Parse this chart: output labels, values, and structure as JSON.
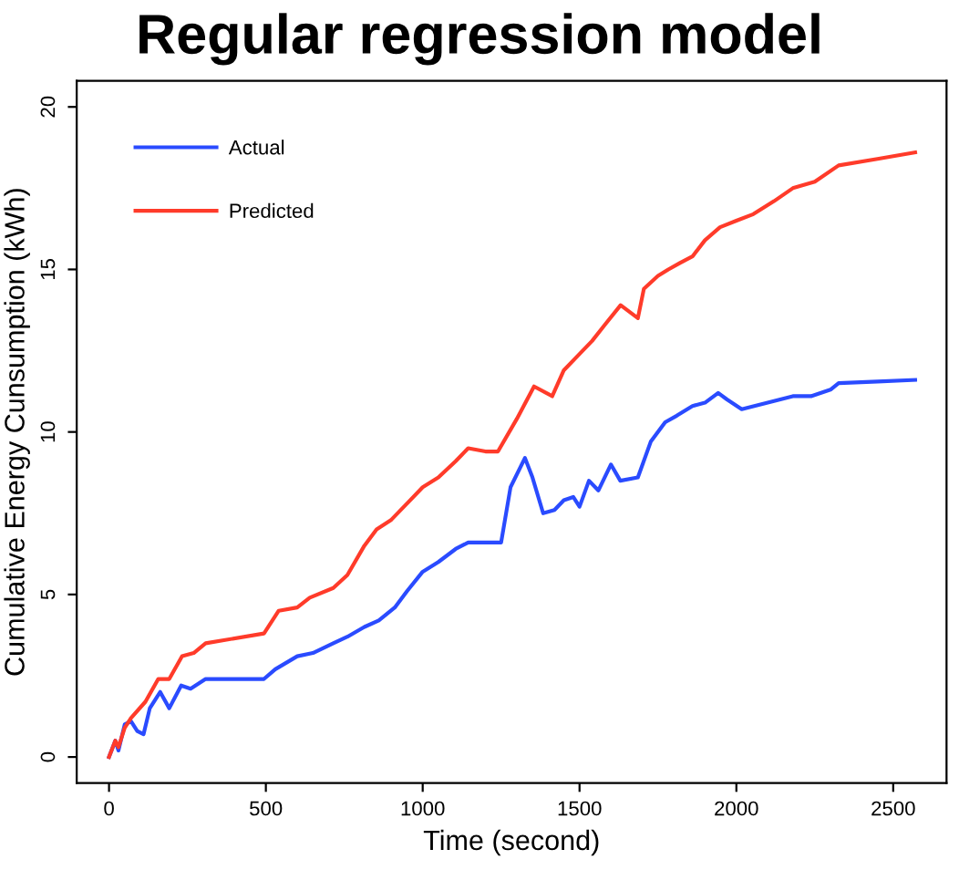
{
  "chart_data": {
    "type": "line",
    "title": "Regular regression model",
    "xlabel": "Time (second)",
    "ylabel": "Cumulative Energy Cunsumption (kWh)",
    "xlim": [
      -103,
      2670
    ],
    "ylim": [
      -0.8,
      20.8
    ],
    "xticks": [
      0,
      500,
      1000,
      1500,
      2000,
      2500
    ],
    "yticks": [
      0,
      5,
      10,
      15,
      20
    ],
    "grid": false,
    "legend": "top left",
    "line_style": "solid",
    "marker": "none",
    "series": [
      {
        "name": "Actual",
        "color": "#2a4bff",
        "x": [
          0,
          20,
          30,
          50,
          70,
          90,
          110,
          130,
          163,
          192,
          230,
          260,
          308,
          494,
          530,
          600,
          650,
          715,
          760,
          814,
          860,
          911,
          950,
          1000,
          1050,
          1105,
          1145,
          1200,
          1250,
          1280,
          1326,
          1350,
          1384,
          1420,
          1450,
          1480,
          1500,
          1530,
          1560,
          1600,
          1630,
          1686,
          1727,
          1773,
          1810,
          1860,
          1900,
          1942,
          1970,
          2017,
          2100,
          2180,
          2238,
          2300,
          2326,
          2450,
          2570
        ],
        "values": [
          0,
          0.5,
          0.2,
          1.0,
          1.1,
          0.8,
          0.7,
          1.5,
          2.0,
          1.5,
          2.2,
          2.1,
          2.4,
          2.4,
          2.7,
          3.1,
          3.2,
          3.5,
          3.7,
          4.0,
          4.2,
          4.6,
          5.1,
          5.7,
          6.0,
          6.4,
          6.6,
          6.6,
          6.6,
          8.3,
          9.2,
          8.6,
          7.5,
          7.6,
          7.9,
          8.0,
          7.7,
          8.5,
          8.2,
          9.0,
          8.5,
          8.6,
          9.7,
          10.3,
          10.5,
          10.8,
          10.9,
          11.2,
          11.0,
          10.7,
          10.9,
          11.1,
          11.1,
          11.3,
          11.5,
          11.55,
          11.6
        ]
      },
      {
        "name": "Predicted",
        "color": "#ff3b2a",
        "x": [
          0,
          20,
          30,
          50,
          70,
          116,
          157,
          192,
          233,
          270,
          308,
          494,
          541,
          600,
          640,
          715,
          760,
          814,
          853,
          900,
          950,
          1000,
          1050,
          1105,
          1145,
          1200,
          1240,
          1300,
          1355,
          1413,
          1450,
          1500,
          1540,
          1581,
          1631,
          1686,
          1705,
          1750,
          1783,
          1820,
          1860,
          1900,
          1948,
          2000,
          2054,
          2120,
          2180,
          2250,
          2326,
          2450,
          2570
        ],
        "values": [
          0,
          0.5,
          0.3,
          0.9,
          1.2,
          1.7,
          2.4,
          2.4,
          3.1,
          3.2,
          3.5,
          3.8,
          4.5,
          4.6,
          4.9,
          5.2,
          5.6,
          6.5,
          7.0,
          7.3,
          7.8,
          8.3,
          8.6,
          9.1,
          9.5,
          9.4,
          9.4,
          10.4,
          11.4,
          11.1,
          11.9,
          12.4,
          12.8,
          13.3,
          13.9,
          13.5,
          14.4,
          14.8,
          15.0,
          15.2,
          15.4,
          15.9,
          16.3,
          16.5,
          16.7,
          17.1,
          17.5,
          17.7,
          18.2,
          18.4,
          18.6
        ]
      }
    ]
  }
}
